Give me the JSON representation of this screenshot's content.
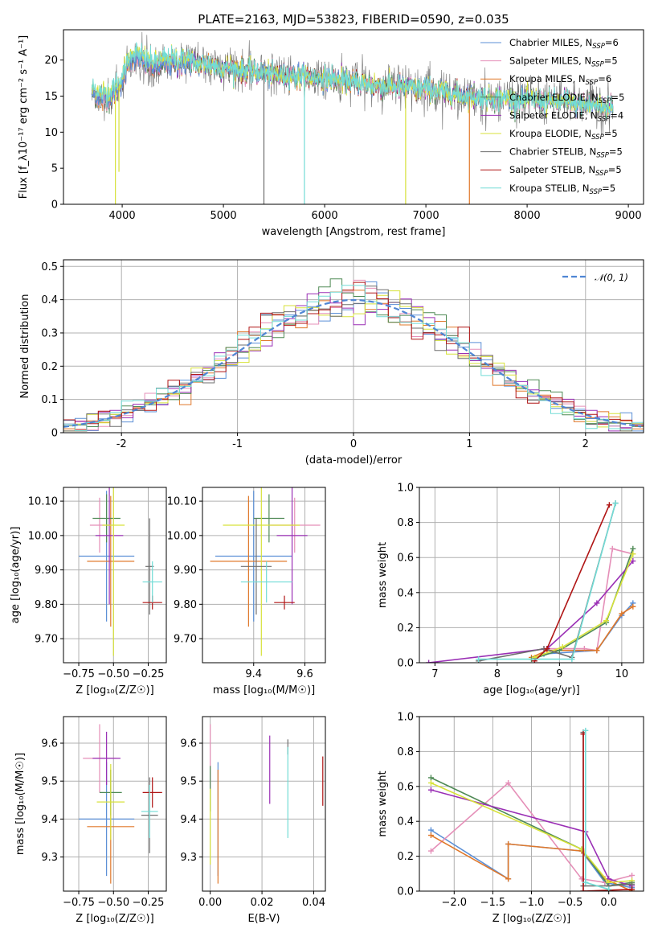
{
  "title": "PLATE=2163, MJD=53823, FIBERID=0590, z=0.035",
  "series_colors": {
    "Chabrier MILES": "#5b8fd6",
    "Salpeter MILES": "#e58fb8",
    "Kroupa MILES": "#e0782a",
    "Chabrier ELODIE": "#4f8a55",
    "Salpeter ELODIE": "#9a2fb5",
    "Kroupa ELODIE": "#d7e23a",
    "Chabrier STELIB": "#6e6e6e",
    "Salpeter STELIB": "#b01515",
    "Kroupa STELIB": "#72dcd6"
  },
  "chart_data": [
    {
      "id": "spectrum",
      "type": "line",
      "xlabel": "wavelength [Angstrom, rest frame]",
      "ylabel": "Flux [f_λ10⁻¹⁷ erg cm⁻² s⁻¹ A⁻¹]",
      "xlim": [
        3420,
        9150
      ],
      "ylim": [
        0,
        24.2
      ],
      "xticks": [
        4000,
        5000,
        6000,
        7000,
        8000,
        9000
      ],
      "yticks": [
        0,
        5,
        10,
        15,
        20
      ],
      "legend_location": "upper right",
      "legend": [
        {
          "name": "Chabrier MILES",
          "nssp": "6"
        },
        {
          "name": "Salpeter MILES",
          "nssp": "5"
        },
        {
          "name": "Kroupa MILES",
          "nssp": "6"
        },
        {
          "name": "Chabrier ELODIE",
          "nssp": "5"
        },
        {
          "name": "Salpeter ELODIE",
          "nssp": "4"
        },
        {
          "name": "Kroupa ELODIE",
          "nssp": "5"
        },
        {
          "name": "Chabrier STELIB",
          "nssp": "5"
        },
        {
          "name": "Salpeter STELIB",
          "nssp": "5"
        },
        {
          "name": "Kroupa STELIB",
          "nssp": "5"
        }
      ],
      "continuum": [
        [
          3700,
          15.5
        ],
        [
          3800,
          14.5
        ],
        [
          3900,
          15
        ],
        [
          4000,
          17
        ],
        [
          4100,
          20.5
        ],
        [
          4300,
          19
        ],
        [
          4500,
          19.5
        ],
        [
          4800,
          19.5
        ],
        [
          5000,
          19
        ],
        [
          5500,
          18
        ],
        [
          6000,
          17.5
        ],
        [
          6500,
          16.5
        ],
        [
          7000,
          16
        ],
        [
          7400,
          15
        ],
        [
          8000,
          14.5
        ],
        [
          8500,
          14
        ],
        [
          8800,
          13.5
        ]
      ],
      "features": [
        {
          "x": 3933,
          "y": 0,
          "series": "Kroupa ELODIE"
        },
        {
          "x": 3968,
          "y": 4.5,
          "series": "Kroupa ELODIE"
        },
        {
          "x": 5400,
          "y": 0,
          "series": "Chabrier STELIB"
        },
        {
          "x": 5800,
          "y": 0,
          "series": "Kroupa STELIB"
        },
        {
          "x": 6800,
          "y": 0,
          "series": "Kroupa ELODIE"
        },
        {
          "x": 7430,
          "y": 0,
          "series": "Kroupa MILES"
        }
      ]
    },
    {
      "id": "residuals",
      "type": "step",
      "xlabel": "(data-model)/error",
      "ylabel": "Normed distribution",
      "xlim": [
        -2.5,
        2.5
      ],
      "ylim": [
        0,
        0.52
      ],
      "xticks": [
        -2,
        -1,
        0,
        1,
        2
      ],
      "yticks": [
        0.0,
        0.1,
        0.2,
        0.3,
        0.4,
        0.5
      ],
      "bin_width": 0.1,
      "legend": [
        "𝒩(0, 1)"
      ],
      "reference": "normal(0,1)"
    },
    {
      "id": "z_age",
      "type": "errorbar",
      "xlabel": "Z [log₁₀(Z/Z☉)]",
      "ylabel": "age  [log₁₀(age/yr)]",
      "xlim": [
        -0.86,
        -0.12
      ],
      "ylim": [
        9.63,
        10.14
      ],
      "xticks": [
        -0.75,
        -0.5,
        -0.25
      ],
      "xtick_labels": [
        "−0.75",
        "−0.50",
        "−0.25"
      ],
      "yticks": [
        9.7,
        9.8,
        9.9,
        10.0,
        10.1
      ],
      "points": [
        {
          "series": "Chabrier MILES",
          "x": -0.55,
          "xerr": 0.2,
          "y": 9.94,
          "yerr": 0.19
        },
        {
          "series": "Salpeter MILES",
          "x": -0.6,
          "xerr": 0.07,
          "y": 10.03,
          "yerr": 0.08
        },
        {
          "series": "Kroupa MILES",
          "x": -0.52,
          "xerr": 0.17,
          "y": 9.925,
          "yerr": 0.19
        },
        {
          "series": "Chabrier ELODIE",
          "x": -0.55,
          "xerr": 0.1,
          "y": 10.05,
          "yerr": 0.07
        },
        {
          "series": "Salpeter ELODIE",
          "x": -0.53,
          "xerr": 0.1,
          "y": 10.0,
          "yerr": 0.2
        },
        {
          "series": "Kroupa ELODIE",
          "x": -0.5,
          "xerr": 0.08,
          "y": 10.03,
          "yerr": 0.38
        },
        {
          "series": "Chabrier STELIB",
          "x": -0.24,
          "xerr": 0.03,
          "y": 9.91,
          "yerr": 0.14
        },
        {
          "series": "Salpeter STELIB",
          "x": -0.22,
          "xerr": 0.07,
          "y": 9.805,
          "yerr": 0.02
        },
        {
          "series": "Kroupa STELIB",
          "x": -0.22,
          "xerr": 0.07,
          "y": 9.865,
          "yerr": 0.06
        }
      ]
    },
    {
      "id": "mass_age",
      "type": "errorbar",
      "xlabel": "mass [log₁₀(M/M☉)]",
      "ylabel": "",
      "xlim": [
        9.2,
        9.68
      ],
      "ylim": [
        9.63,
        10.14
      ],
      "xticks": [
        9.4,
        9.6
      ],
      "yticks": [
        9.7,
        9.8,
        9.9,
        10.0,
        10.1
      ],
      "points": [
        {
          "series": "Chabrier MILES",
          "x": 9.4,
          "xerr": 0.15,
          "y": 9.94,
          "yerr": 0.19
        },
        {
          "series": "Salpeter MILES",
          "x": 9.56,
          "xerr": 0.1,
          "y": 10.03,
          "yerr": 0.08
        },
        {
          "series": "Kroupa MILES",
          "x": 9.38,
          "xerr": 0.15,
          "y": 9.925,
          "yerr": 0.19
        },
        {
          "series": "Chabrier ELODIE",
          "x": 9.46,
          "xerr": 0.06,
          "y": 10.05,
          "yerr": 0.07
        },
        {
          "series": "Salpeter ELODIE",
          "x": 9.55,
          "xerr": 0.06,
          "y": 10.0,
          "yerr": 0.2
        },
        {
          "series": "Kroupa ELODIE",
          "x": 9.43,
          "xerr": 0.15,
          "y": 10.03,
          "yerr": 0.38
        },
        {
          "series": "Chabrier STELIB",
          "x": 9.41,
          "xerr": 0.06,
          "y": 9.91,
          "yerr": 0.14
        },
        {
          "series": "Salpeter STELIB",
          "x": 9.52,
          "xerr": 0.04,
          "y": 9.805,
          "yerr": 0.02
        },
        {
          "series": "Kroupa STELIB",
          "x": 9.45,
          "xerr": 0.1,
          "y": 9.865,
          "yerr": 0.06
        }
      ]
    },
    {
      "id": "age_weight",
      "type": "line",
      "xlabel": "age  [log₁₀(age/yr)]",
      "ylabel": "mass weight",
      "xlim": [
        6.75,
        10.35
      ],
      "ylim": [
        0,
        1.0
      ],
      "xticks": [
        7,
        8,
        9,
        10
      ],
      "yticks": [
        0.0,
        0.2,
        0.4,
        0.6,
        0.8,
        1.0
      ],
      "series": [
        {
          "name": "Chabrier MILES",
          "x": [
            8.6,
            8.75,
            9.6,
            10.0,
            10.18
          ],
          "y": [
            0.02,
            0.05,
            0.07,
            0.27,
            0.34
          ]
        },
        {
          "name": "Salpeter MILES",
          "x": [
            8.75,
            9.4,
            9.6,
            9.85,
            10.18
          ],
          "y": [
            0.08,
            0.08,
            0.07,
            0.65,
            0.62
          ]
        },
        {
          "name": "Kroupa MILES",
          "x": [
            8.55,
            8.8,
            9.6,
            10.0,
            10.18
          ],
          "y": [
            0.03,
            0.07,
            0.07,
            0.28,
            0.32
          ]
        },
        {
          "name": "Chabrier ELODIE",
          "x": [
            8.55,
            9.0,
            9.75,
            10.18
          ],
          "y": [
            0.02,
            0.07,
            0.23,
            0.65
          ]
        },
        {
          "name": "Salpeter ELODIE",
          "x": [
            6.9,
            8.8,
            9.6,
            10.18
          ],
          "y": [
            0.0,
            0.08,
            0.34,
            0.58
          ]
        },
        {
          "name": "Kroupa ELODIE",
          "x": [
            8.6,
            9.05,
            9.75,
            10.18
          ],
          "y": [
            0.03,
            0.09,
            0.24,
            0.62
          ]
        },
        {
          "name": "Chabrier STELIB",
          "x": [
            7.7,
            8.75,
            9.2,
            9.9
          ],
          "y": [
            0.01,
            0.08,
            0.03,
            0.91
          ]
        },
        {
          "name": "Salpeter STELIB",
          "x": [
            8.6,
            8.8,
            9.8
          ],
          "y": [
            0.01,
            0.08,
            0.9
          ]
        },
        {
          "name": "Kroupa STELIB",
          "x": [
            7.7,
            9.2,
            9.9
          ],
          "y": [
            0.02,
            0.02,
            0.91
          ]
        }
      ]
    },
    {
      "id": "z_mass",
      "type": "errorbar",
      "xlabel": "Z [log₁₀(Z/Z☉)]",
      "ylabel": "mass [log₁₀(M/M☉)]",
      "xlim": [
        -0.86,
        -0.12
      ],
      "ylim": [
        9.21,
        9.67
      ],
      "xticks": [
        -0.75,
        -0.5,
        -0.25
      ],
      "xtick_labels": [
        "−0.75",
        "−0.50",
        "−0.25"
      ],
      "yticks": [
        9.3,
        9.4,
        9.5,
        9.6
      ],
      "points": [
        {
          "series": "Chabrier MILES",
          "x": -0.55,
          "xerr": 0.2,
          "y": 9.4,
          "yerr": 0.15
        },
        {
          "series": "Salpeter MILES",
          "x": -0.6,
          "xerr": 0.12,
          "y": 9.56,
          "yerr": 0.09
        },
        {
          "series": "Kroupa MILES",
          "x": -0.52,
          "xerr": 0.17,
          "y": 9.38,
          "yerr": 0.15
        },
        {
          "series": "Chabrier ELODIE",
          "x": -0.52,
          "xerr": 0.08,
          "y": 9.47,
          "yerr": 0.06
        },
        {
          "series": "Salpeter ELODIE",
          "x": -0.55,
          "xerr": 0.1,
          "y": 9.56,
          "yerr": 0.07
        },
        {
          "series": "Kroupa ELODIE",
          "x": -0.52,
          "xerr": 0.1,
          "y": 9.445,
          "yerr": 0.1
        },
        {
          "series": "Chabrier STELIB",
          "x": -0.24,
          "xerr": 0.06,
          "y": 9.41,
          "yerr": 0.1
        },
        {
          "series": "Salpeter STELIB",
          "x": -0.22,
          "xerr": 0.07,
          "y": 9.47,
          "yerr": 0.04
        },
        {
          "series": "Kroupa STELIB",
          "x": -0.24,
          "xerr": 0.06,
          "y": 9.42,
          "yerr": 0.07
        }
      ]
    },
    {
      "id": "ebv_mass",
      "type": "errorbar",
      "xlabel": "E(B-V)",
      "ylabel": "",
      "xlim": [
        -0.003,
        0.0445
      ],
      "ylim": [
        9.21,
        9.67
      ],
      "xticks": [
        0.0,
        0.02,
        0.04
      ],
      "xtick_labels": [
        "0.00",
        "0.02",
        "0.04"
      ],
      "yticks": [
        9.3,
        9.4,
        9.5,
        9.6
      ],
      "points": [
        {
          "series": "Chabrier MILES",
          "x": 0.003,
          "y": 9.4,
          "yerr": 0.15
        },
        {
          "series": "Salpeter MILES",
          "x": 0.0,
          "y": 9.56,
          "yerr": 0.09
        },
        {
          "series": "Kroupa MILES",
          "x": 0.003,
          "y": 9.38,
          "yerr": 0.15
        },
        {
          "series": "Chabrier ELODIE",
          "x": 0.0,
          "y": 9.48,
          "yerr": 0.06
        },
        {
          "series": "Salpeter ELODIE",
          "x": 0.023,
          "y": 9.53,
          "yerr": 0.09
        },
        {
          "series": "Kroupa ELODIE",
          "x": 0.0,
          "y": 9.38,
          "yerr": 0.1
        },
        {
          "series": "Chabrier STELIB",
          "x": 0.03,
          "y": 9.59,
          "yerr": 0.02
        },
        {
          "series": "Salpeter STELIB",
          "x": 0.0435,
          "y": 9.5,
          "yerr": 0.065
        },
        {
          "series": "Kroupa STELIB",
          "x": 0.03,
          "y": 9.47,
          "yerr": 0.12
        }
      ]
    },
    {
      "id": "z_weight",
      "type": "line",
      "xlabel": "Z [log₁₀(Z/Z☉)]",
      "ylabel": "mass weight",
      "xlim": [
        -2.45,
        0.45
      ],
      "ylim": [
        0,
        1.0
      ],
      "xticks": [
        -2.0,
        -1.5,
        -1.0,
        -0.5,
        0.0
      ],
      "xtick_labels": [
        "−2.0",
        "−1.5",
        "−1.0",
        "−0.5",
        "0.0"
      ],
      "yticks": [
        0.0,
        0.2,
        0.4,
        0.6,
        0.8,
        1.0
      ],
      "series": [
        {
          "name": "Chabrier MILES",
          "x": [
            -2.3,
            -1.3,
            -1.3,
            -0.35,
            -0.05,
            0.3
          ],
          "y": [
            0.35,
            0.07,
            0.27,
            0.23,
            0.05,
            0.02
          ]
        },
        {
          "name": "Salpeter MILES",
          "x": [
            -2.3,
            -1.3,
            -0.35,
            -0.05,
            0.3
          ],
          "y": [
            0.23,
            0.62,
            0.07,
            0.05,
            0.09
          ]
        },
        {
          "name": "Kroupa MILES",
          "x": [
            -2.3,
            -1.3,
            -1.3,
            -0.35,
            -0.05,
            0.3
          ],
          "y": [
            0.32,
            0.07,
            0.27,
            0.23,
            0.07,
            0.0
          ]
        },
        {
          "name": "Chabrier ELODIE",
          "x": [
            -2.3,
            -0.35,
            0.0,
            0.3
          ],
          "y": [
            0.65,
            0.24,
            0.03,
            0.05
          ]
        },
        {
          "name": "Salpeter ELODIE",
          "x": [
            -2.3,
            -0.3,
            0.0,
            0.3
          ],
          "y": [
            0.58,
            0.34,
            0.07,
            0.03
          ]
        },
        {
          "name": "Kroupa ELODIE",
          "x": [
            -2.3,
            -0.35,
            0.0,
            0.3
          ],
          "y": [
            0.62,
            0.24,
            0.05,
            0.06
          ]
        },
        {
          "name": "Chabrier STELIB",
          "x": [
            -0.33,
            -0.33,
            0.0,
            0.3
          ],
          "y": [
            0.91,
            0.03,
            0.03,
            0.04
          ]
        },
        {
          "name": "Salpeter STELIB",
          "x": [
            -0.33,
            -0.33,
            0.3
          ],
          "y": [
            0.9,
            0.0,
            0.01
          ]
        },
        {
          "name": "Kroupa STELIB",
          "x": [
            -0.3,
            -0.3,
            0.0
          ],
          "y": [
            0.92,
            0.05,
            0.01
          ]
        }
      ]
    }
  ]
}
